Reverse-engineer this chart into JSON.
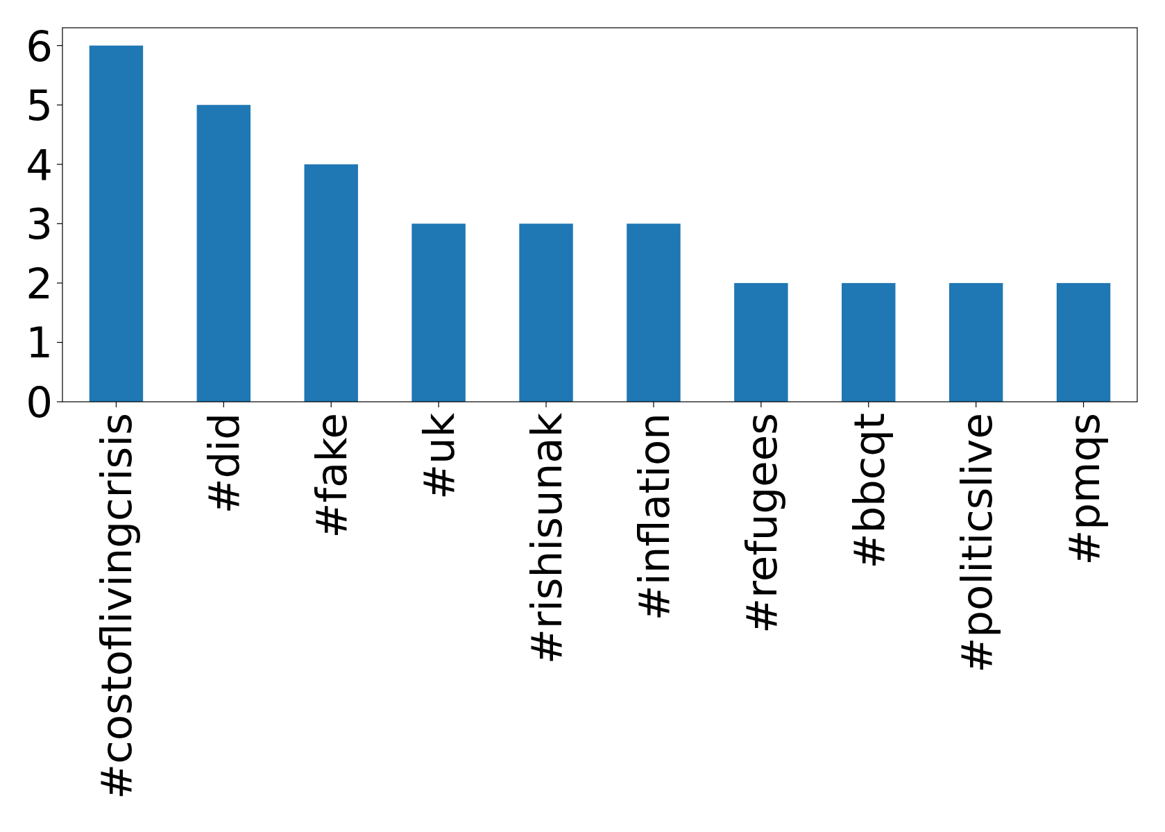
{
  "chart_data": {
    "type": "bar",
    "categories": [
      "#costoflivingcrisis",
      "#did",
      "#fake",
      "#uk",
      "#rishisunak",
      "#inflation",
      "#refugees",
      "#bbcqt",
      "#politicslive",
      "#pmqs"
    ],
    "values": [
      6,
      5,
      4,
      3,
      3,
      3,
      2,
      2,
      2,
      2
    ],
    "color": "#1f77b4",
    "ylim": [
      0,
      6.3
    ],
    "yticks": [
      0,
      1,
      2,
      3,
      4,
      5,
      6
    ],
    "grid": false
  }
}
